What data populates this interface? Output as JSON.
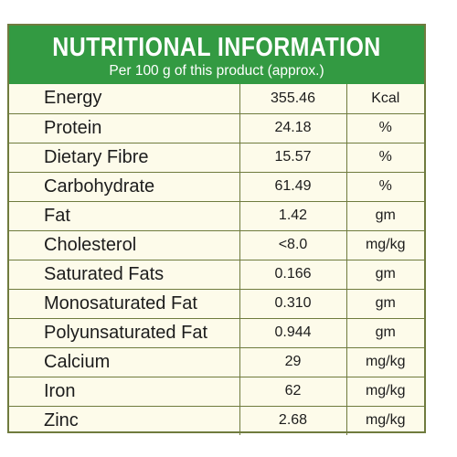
{
  "header": {
    "title": "NUTRITIONAL INFORMATION",
    "subtitle": "Per 100 g of this product (approx.)"
  },
  "colors": {
    "header_green": "#339a42",
    "panel_cream": "#fdfbea",
    "border_olive": "#6f7b3e"
  },
  "rows": [
    {
      "name": "Energy",
      "value": "355.46",
      "unit": "Kcal"
    },
    {
      "name": "Protein",
      "value": "24.18",
      "unit": "%"
    },
    {
      "name": "Dietary Fibre",
      "value": "15.57",
      "unit": "%"
    },
    {
      "name": "Carbohydrate",
      "value": "61.49",
      "unit": "%"
    },
    {
      "name": "Fat",
      "value": "1.42",
      "unit": "gm"
    },
    {
      "name": "Cholesterol",
      "value": "<8.0",
      "unit": "mg/kg"
    },
    {
      "name": "Saturated Fats",
      "value": "0.166",
      "unit": "gm"
    },
    {
      "name": "Monosaturated Fat",
      "value": "0.310",
      "unit": "gm"
    },
    {
      "name": "Polyunsaturated Fat",
      "value": "0.944",
      "unit": "gm"
    },
    {
      "name": "Calcium",
      "value": "29",
      "unit": "mg/kg"
    },
    {
      "name": "Iron",
      "value": "62",
      "unit": "mg/kg"
    },
    {
      "name": "Zinc",
      "value": "2.68",
      "unit": "mg/kg"
    }
  ]
}
